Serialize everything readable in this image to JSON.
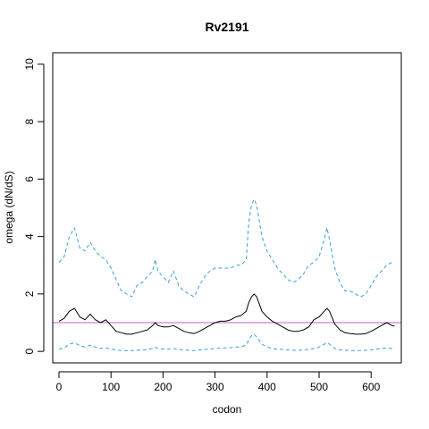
{
  "chart_data": {
    "type": "line",
    "title": "Rv2191",
    "xlabel": "codon",
    "ylabel": "omega (dN/dS)",
    "xlim": [
      -12,
      658
    ],
    "ylim": [
      -0.4,
      10.4
    ],
    "xticks": [
      0,
      100,
      200,
      300,
      400,
      500,
      600
    ],
    "yticks": [
      0,
      2,
      4,
      6,
      8,
      10
    ],
    "grid": false,
    "legend": "none",
    "reference_line": {
      "y": 1,
      "color": "#c060c0"
    },
    "series": [
      {
        "role": "upper",
        "color": "#3a9fd8",
        "style": "dashed",
        "x": [
          0,
          10,
          20,
          30,
          40,
          50,
          60,
          70,
          80,
          90,
          100,
          110,
          120,
          130,
          140,
          150,
          160,
          170,
          180,
          185,
          190,
          200,
          210,
          220,
          230,
          240,
          250,
          260,
          270,
          280,
          290,
          300,
          310,
          320,
          330,
          340,
          350,
          360,
          365,
          370,
          375,
          380,
          390,
          400,
          410,
          420,
          430,
          440,
          450,
          460,
          470,
          480,
          490,
          500,
          510,
          515,
          520,
          530,
          540,
          550,
          560,
          570,
          580,
          590,
          600,
          610,
          620,
          630,
          640,
          645
        ],
        "y": [
          3.1,
          3.3,
          4.0,
          4.3,
          3.6,
          3.5,
          3.8,
          3.5,
          3.3,
          3.2,
          2.9,
          2.5,
          2.1,
          2.0,
          1.9,
          2.3,
          2.4,
          2.6,
          2.8,
          3.2,
          2.8,
          2.6,
          2.4,
          2.8,
          2.3,
          2.1,
          2.0,
          1.9,
          2.3,
          2.6,
          2.8,
          2.9,
          2.9,
          2.9,
          2.9,
          3.0,
          3.0,
          3.2,
          4.5,
          5.1,
          5.3,
          5.1,
          4.0,
          3.5,
          3.2,
          2.9,
          2.7,
          2.5,
          2.4,
          2.5,
          2.7,
          3.0,
          3.1,
          3.3,
          3.9,
          4.3,
          3.9,
          2.9,
          2.4,
          2.1,
          2.1,
          2.0,
          1.9,
          2.0,
          2.3,
          2.6,
          2.8,
          3.0,
          3.1,
          3.1
        ]
      },
      {
        "role": "estimate",
        "color": "#000000",
        "style": "solid",
        "x": [
          0,
          10,
          20,
          30,
          40,
          50,
          60,
          70,
          80,
          90,
          100,
          110,
          120,
          130,
          140,
          150,
          160,
          170,
          180,
          185,
          190,
          200,
          210,
          220,
          230,
          240,
          250,
          260,
          270,
          280,
          290,
          300,
          310,
          320,
          330,
          340,
          350,
          360,
          365,
          370,
          375,
          380,
          390,
          400,
          410,
          420,
          430,
          440,
          450,
          460,
          470,
          480,
          490,
          500,
          510,
          515,
          520,
          530,
          540,
          550,
          560,
          570,
          580,
          590,
          600,
          610,
          620,
          630,
          640,
          645
        ],
        "y": [
          1.05,
          1.15,
          1.4,
          1.5,
          1.2,
          1.1,
          1.3,
          1.1,
          1.0,
          1.1,
          0.9,
          0.7,
          0.65,
          0.6,
          0.6,
          0.65,
          0.7,
          0.75,
          0.9,
          1.0,
          0.9,
          0.85,
          0.85,
          0.9,
          0.8,
          0.7,
          0.65,
          0.62,
          0.7,
          0.8,
          0.9,
          1.0,
          1.05,
          1.05,
          1.1,
          1.2,
          1.25,
          1.4,
          1.7,
          1.9,
          2.0,
          1.9,
          1.4,
          1.2,
          1.05,
          0.95,
          0.85,
          0.75,
          0.7,
          0.7,
          0.75,
          0.85,
          1.1,
          1.2,
          1.4,
          1.5,
          1.4,
          0.95,
          0.75,
          0.65,
          0.62,
          0.6,
          0.6,
          0.62,
          0.7,
          0.8,
          0.9,
          1.0,
          0.9,
          0.88
        ]
      },
      {
        "role": "lower",
        "color": "#3a9fd8",
        "style": "dashed",
        "x": [
          0,
          10,
          20,
          30,
          40,
          50,
          60,
          70,
          80,
          90,
          100,
          110,
          120,
          130,
          140,
          150,
          160,
          170,
          180,
          185,
          190,
          200,
          210,
          220,
          230,
          240,
          250,
          260,
          270,
          280,
          290,
          300,
          310,
          320,
          330,
          340,
          350,
          360,
          365,
          370,
          375,
          380,
          390,
          400,
          410,
          420,
          430,
          440,
          450,
          460,
          470,
          480,
          490,
          500,
          510,
          515,
          520,
          530,
          540,
          550,
          560,
          570,
          580,
          590,
          600,
          610,
          620,
          630,
          640,
          645
        ],
        "y": [
          0.08,
          0.12,
          0.25,
          0.3,
          0.2,
          0.15,
          0.22,
          0.15,
          0.1,
          0.12,
          0.08,
          0.05,
          0.03,
          0.03,
          0.03,
          0.04,
          0.05,
          0.06,
          0.1,
          0.15,
          0.1,
          0.08,
          0.08,
          0.1,
          0.07,
          0.05,
          0.04,
          0.03,
          0.05,
          0.07,
          0.08,
          0.1,
          0.12,
          0.12,
          0.13,
          0.15,
          0.16,
          0.22,
          0.4,
          0.55,
          0.6,
          0.5,
          0.25,
          0.15,
          0.1,
          0.08,
          0.07,
          0.05,
          0.04,
          0.04,
          0.05,
          0.07,
          0.1,
          0.15,
          0.25,
          0.3,
          0.25,
          0.1,
          0.05,
          0.04,
          0.03,
          0.03,
          0.03,
          0.04,
          0.05,
          0.08,
          0.1,
          0.12,
          0.1,
          0.08
        ]
      }
    ]
  }
}
